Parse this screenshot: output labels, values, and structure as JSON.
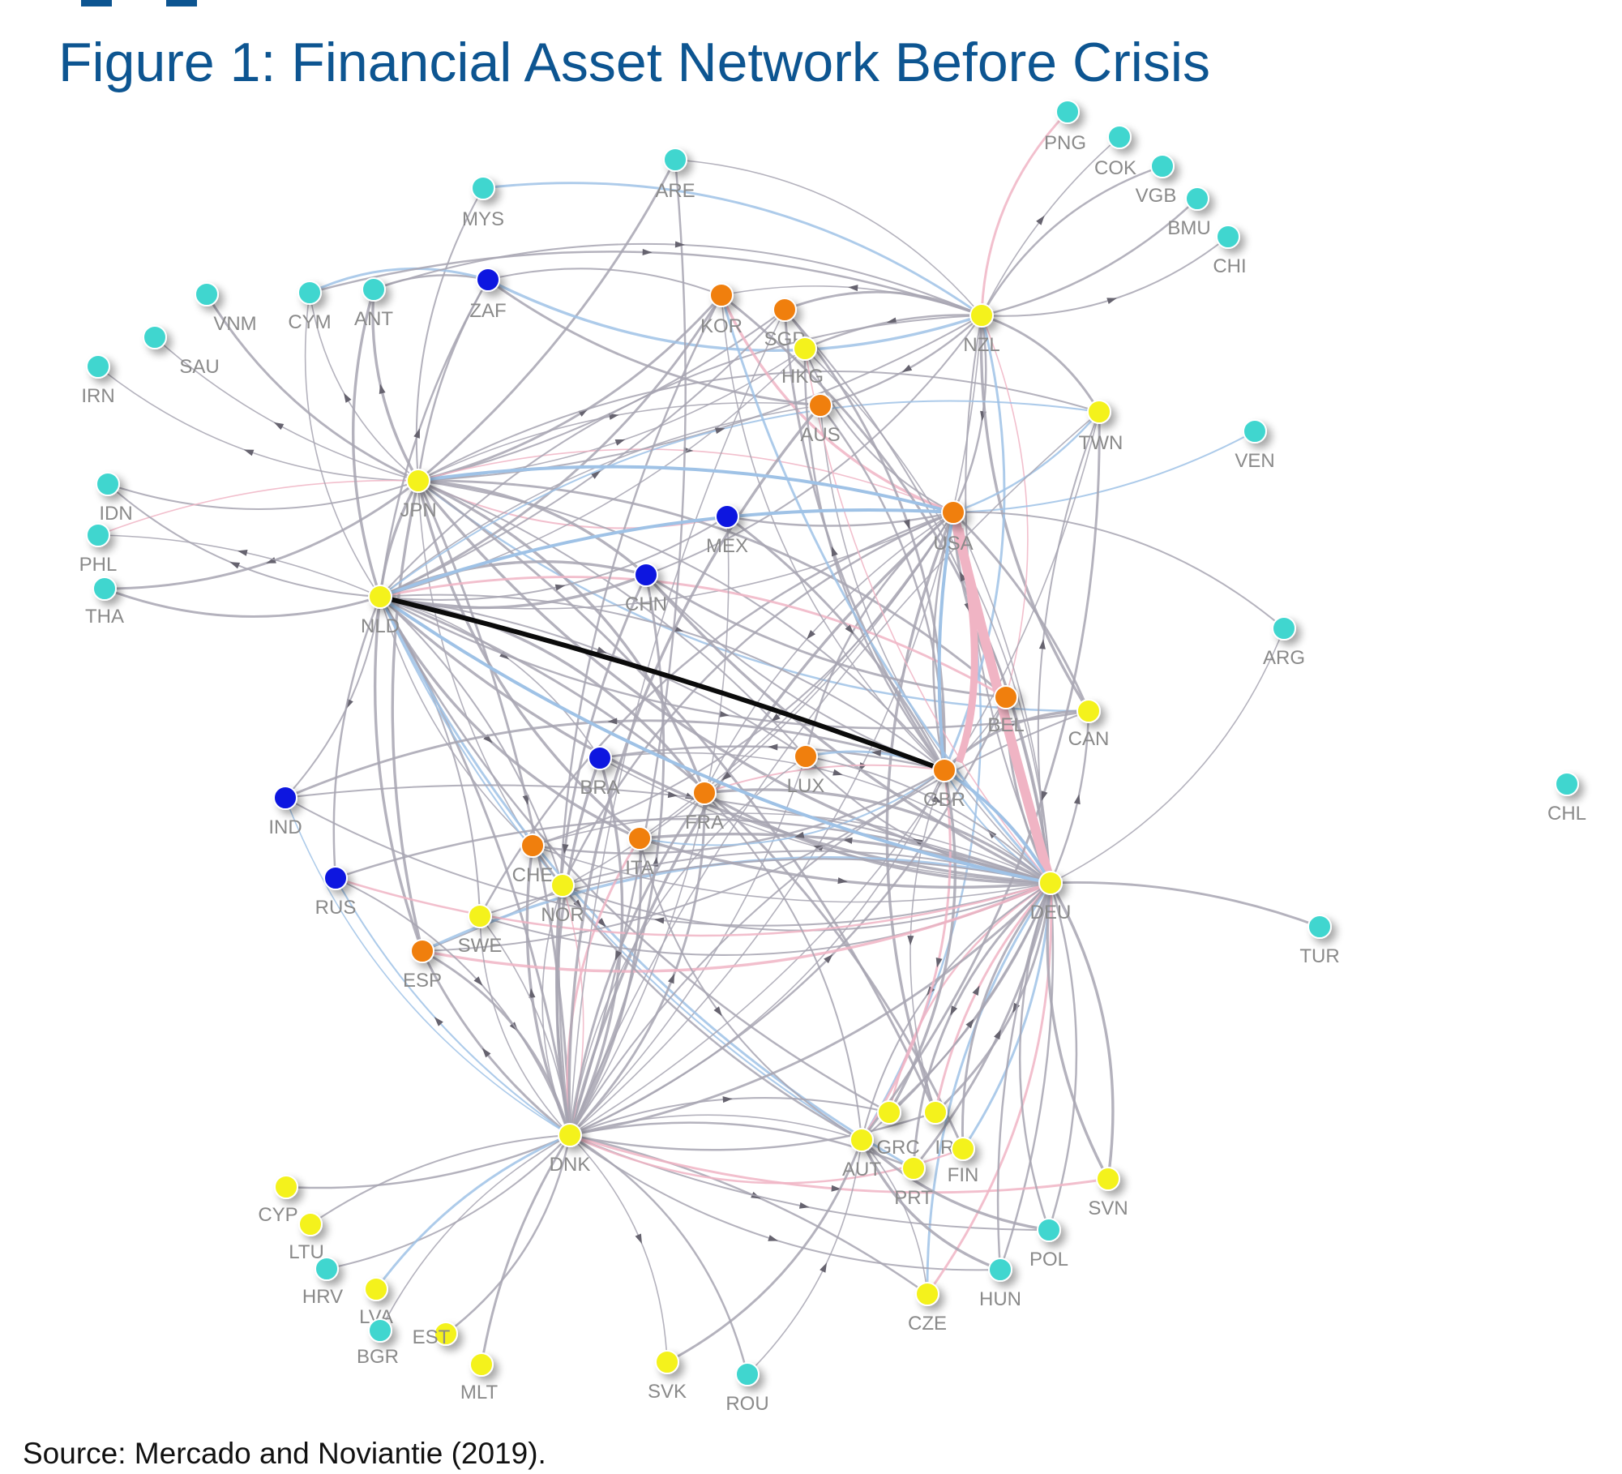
{
  "title": "Figure 1: Financial Asset Network Before Crisis",
  "source": "Source: Mercado and Noviantie (2019).",
  "colors": {
    "teal": "#3fd6cf",
    "yellow": "#f4f21a",
    "orange": "#f07f10",
    "blue": "#0a18e0",
    "edge": "#a7a4b2",
    "edge_blue": "#9fc2e6",
    "edge_pink": "#f0b4c4",
    "edge_strong": "#0b0b0b",
    "title": "#0d5591"
  },
  "nodes": [
    {
      "id": "PNG",
      "label": "PNG",
      "color": "teal"
    },
    {
      "id": "COK",
      "label": "COK",
      "color": "teal"
    },
    {
      "id": "VGB",
      "label": "VGB",
      "color": "teal"
    },
    {
      "id": "BMU",
      "label": "BMU",
      "color": "teal"
    },
    {
      "id": "CHI",
      "label": "CHI",
      "color": "teal"
    },
    {
      "id": "ARE",
      "label": "ARE",
      "color": "teal"
    },
    {
      "id": "MYS",
      "label": "MYS",
      "color": "teal"
    },
    {
      "id": "VNM",
      "label": "VNM",
      "color": "teal"
    },
    {
      "id": "CYM",
      "label": "CYM",
      "color": "teal"
    },
    {
      "id": "ANT",
      "label": "ANT",
      "color": "teal"
    },
    {
      "id": "ZAF",
      "label": "ZAF",
      "color": "blue"
    },
    {
      "id": "KOR",
      "label": "KOR",
      "color": "orange"
    },
    {
      "id": "SGP",
      "label": "SGP",
      "color": "orange"
    },
    {
      "id": "HKG",
      "label": "HKG",
      "color": "yellow"
    },
    {
      "id": "NZL",
      "label": "NZL",
      "color": "yellow"
    },
    {
      "id": "SAU",
      "label": "SAU",
      "color": "teal"
    },
    {
      "id": "IRN",
      "label": "IRN",
      "color": "teal"
    },
    {
      "id": "AUS",
      "label": "AUS",
      "color": "orange"
    },
    {
      "id": "TWN",
      "label": "TWN",
      "color": "yellow"
    },
    {
      "id": "VEN",
      "label": "VEN",
      "color": "teal"
    },
    {
      "id": "IDN",
      "label": "IDN",
      "color": "teal"
    },
    {
      "id": "JPN",
      "label": "JPN",
      "color": "yellow"
    },
    {
      "id": "MEX",
      "label": "MEX",
      "color": "blue"
    },
    {
      "id": "USA",
      "label": "USA",
      "color": "orange"
    },
    {
      "id": "PHL",
      "label": "PHL",
      "color": "teal"
    },
    {
      "id": "CHN",
      "label": "CHN",
      "color": "blue"
    },
    {
      "id": "THA",
      "label": "THA",
      "color": "teal"
    },
    {
      "id": "NLD",
      "label": "NLD",
      "color": "yellow"
    },
    {
      "id": "ARG",
      "label": "ARG",
      "color": "teal"
    },
    {
      "id": "BEL",
      "label": "BEL",
      "color": "orange"
    },
    {
      "id": "CAN",
      "label": "CAN",
      "color": "yellow"
    },
    {
      "id": "BRA",
      "label": "BRA",
      "color": "blue"
    },
    {
      "id": "LUX",
      "label": "LUX",
      "color": "orange"
    },
    {
      "id": "GBR",
      "label": "GBR",
      "color": "orange"
    },
    {
      "id": "CHL",
      "label": "CHL",
      "color": "teal"
    },
    {
      "id": "IND",
      "label": "IND",
      "color": "blue"
    },
    {
      "id": "FRA",
      "label": "FRA",
      "color": "orange"
    },
    {
      "id": "CHE",
      "label": "CHE",
      "color": "orange"
    },
    {
      "id": "ITA",
      "label": "ITA",
      "color": "orange"
    },
    {
      "id": "NOR",
      "label": "NOR",
      "color": "yellow"
    },
    {
      "id": "DEU",
      "label": "DEU",
      "color": "yellow"
    },
    {
      "id": "RUS",
      "label": "RUS",
      "color": "blue"
    },
    {
      "id": "SWE",
      "label": "SWE",
      "color": "yellow"
    },
    {
      "id": "ESP",
      "label": "ESP",
      "color": "orange"
    },
    {
      "id": "TUR",
      "label": "TUR",
      "color": "teal"
    },
    {
      "id": "GRC",
      "label": "GRC",
      "color": "yellow"
    },
    {
      "id": "IRL",
      "label": "IRL",
      "color": "yellow"
    },
    {
      "id": "AUT",
      "label": "AUT",
      "color": "yellow"
    },
    {
      "id": "FIN",
      "label": "FIN",
      "color": "yellow"
    },
    {
      "id": "PRT",
      "label": "PRT",
      "color": "yellow"
    },
    {
      "id": "DNK",
      "label": "DNK",
      "color": "yellow"
    },
    {
      "id": "CYP",
      "label": "CYP",
      "color": "yellow"
    },
    {
      "id": "LTU",
      "label": "LTU",
      "color": "yellow"
    },
    {
      "id": "SVN",
      "label": "SVN",
      "color": "yellow"
    },
    {
      "id": "POL",
      "label": "POL",
      "color": "teal"
    },
    {
      "id": "HRV",
      "label": "HRV",
      "color": "teal"
    },
    {
      "id": "LVA",
      "label": "LVA",
      "color": "yellow"
    },
    {
      "id": "HUN",
      "label": "HUN",
      "color": "teal"
    },
    {
      "id": "CZE",
      "label": "CZE",
      "color": "yellow"
    },
    {
      "id": "BGR",
      "label": "BGR",
      "color": "teal"
    },
    {
      "id": "EST",
      "label": "EST",
      "color": "yellow"
    },
    {
      "id": "MLT",
      "label": "MLT",
      "color": "yellow"
    },
    {
      "id": "SVK",
      "label": "SVK",
      "color": "yellow"
    },
    {
      "id": "ROU",
      "label": "ROU",
      "color": "teal"
    }
  ],
  "edges": [
    [
      "JPN",
      "ARE"
    ],
    [
      "JPN",
      "MYS"
    ],
    [
      "JPN",
      "VNM"
    ],
    [
      "JPN",
      "CYM"
    ],
    [
      "JPN",
      "ANT"
    ],
    [
      "JPN",
      "ZAF"
    ],
    [
      "JPN",
      "KOR"
    ],
    [
      "JPN",
      "SGP"
    ],
    [
      "JPN",
      "HKG"
    ],
    [
      "JPN",
      "NZL"
    ],
    [
      "JPN",
      "SAU"
    ],
    [
      "JPN",
      "IRN"
    ],
    [
      "JPN",
      "AUS"
    ],
    [
      "JPN",
      "TWN"
    ],
    [
      "JPN",
      "IDN"
    ],
    [
      "JPN",
      "PHL"
    ],
    [
      "JPN",
      "THA"
    ],
    [
      "JPN",
      "MEX"
    ],
    [
      "JPN",
      "USA"
    ],
    [
      "JPN",
      "CHN"
    ],
    [
      "JPN",
      "NLD"
    ],
    [
      "JPN",
      "BEL"
    ],
    [
      "JPN",
      "CAN"
    ],
    [
      "JPN",
      "LUX"
    ],
    [
      "JPN",
      "GBR"
    ],
    [
      "JPN",
      "FRA"
    ],
    [
      "JPN",
      "ITA"
    ],
    [
      "JPN",
      "DEU"
    ],
    [
      "JPN",
      "DNK"
    ],
    [
      "JPN",
      "IRL"
    ],
    [
      "JPN",
      "ESP"
    ],
    [
      "JPN",
      "CHE"
    ],
    [
      "NZL",
      "PNG"
    ],
    [
      "NZL",
      "COK"
    ],
    [
      "NZL",
      "VGB"
    ],
    [
      "NZL",
      "BMU"
    ],
    [
      "NZL",
      "CHI"
    ],
    [
      "NZL",
      "ARE"
    ],
    [
      "NZL",
      "ZAF"
    ],
    [
      "NZL",
      "KOR"
    ],
    [
      "NZL",
      "SGP"
    ],
    [
      "NZL",
      "HKG"
    ],
    [
      "NZL",
      "TWN"
    ],
    [
      "NZL",
      "USA"
    ],
    [
      "NZL",
      "CAN"
    ],
    [
      "NZL",
      "DEU"
    ],
    [
      "NZL",
      "GBR"
    ],
    [
      "NZL",
      "NLD"
    ],
    [
      "NZL",
      "AUS"
    ],
    [
      "NZL",
      "BEL"
    ],
    [
      "NZL",
      "DNK"
    ],
    [
      "NZL",
      "CHN"
    ],
    [
      "USA",
      "VEN"
    ],
    [
      "USA",
      "ARG"
    ],
    [
      "USA",
      "MEX"
    ],
    [
      "USA",
      "BEL"
    ],
    [
      "USA",
      "CAN"
    ],
    [
      "USA",
      "GBR"
    ],
    [
      "USA",
      "DEU"
    ],
    [
      "USA",
      "NLD"
    ],
    [
      "USA",
      "LUX"
    ],
    [
      "USA",
      "FRA"
    ],
    [
      "USA",
      "DNK"
    ],
    [
      "USA",
      "CHE"
    ],
    [
      "USA",
      "IRL"
    ],
    [
      "USA",
      "ITA"
    ],
    [
      "USA",
      "ESP"
    ],
    [
      "USA",
      "NOR"
    ],
    [
      "USA",
      "SWE"
    ],
    [
      "USA",
      "AUT"
    ],
    [
      "USA",
      "HKG"
    ],
    [
      "USA",
      "KOR"
    ],
    [
      "USA",
      "TWN"
    ],
    [
      "NLD",
      "IDN"
    ],
    [
      "NLD",
      "PHL"
    ],
    [
      "NLD",
      "THA"
    ],
    [
      "NLD",
      "CYM"
    ],
    [
      "NLD",
      "ANT"
    ],
    [
      "NLD",
      "ZAF"
    ],
    [
      "NLD",
      "IND"
    ],
    [
      "NLD",
      "RUS"
    ],
    [
      "NLD",
      "ESP"
    ],
    [
      "NLD",
      "SWE"
    ],
    [
      "NLD",
      "CHE"
    ],
    [
      "NLD",
      "NOR"
    ],
    [
      "NLD",
      "ITA"
    ],
    [
      "NLD",
      "FRA"
    ],
    [
      "NLD",
      "BRA"
    ],
    [
      "NLD",
      "LUX"
    ],
    [
      "NLD",
      "GBR"
    ],
    [
      "NLD",
      "DEU"
    ],
    [
      "NLD",
      "DNK"
    ],
    [
      "NLD",
      "GRC"
    ],
    [
      "NLD",
      "AUT"
    ],
    [
      "NLD",
      "BEL"
    ],
    [
      "NLD",
      "CAN"
    ],
    [
      "NLD",
      "MEX"
    ],
    [
      "NLD",
      "CHN"
    ],
    [
      "NLD",
      "SGP"
    ],
    [
      "NLD",
      "KOR"
    ],
    [
      "NLD",
      "HKG"
    ],
    [
      "NLD",
      "AUS"
    ],
    [
      "NLD",
      "TWN"
    ],
    [
      "NLD",
      "FIN"
    ],
    [
      "NLD",
      "PRT"
    ],
    [
      "DEU",
      "TUR"
    ],
    [
      "DEU",
      "ARG"
    ],
    [
      "DEU",
      "CAN"
    ],
    [
      "DEU",
      "BEL"
    ],
    [
      "DEU",
      "GBR"
    ],
    [
      "DEU",
      "LUX"
    ],
    [
      "DEU",
      "FRA"
    ],
    [
      "DEU",
      "ITA"
    ],
    [
      "DEU",
      "CHE"
    ],
    [
      "DEU",
      "NOR"
    ],
    [
      "DEU",
      "SWE"
    ],
    [
      "DEU",
      "ESP"
    ],
    [
      "DEU",
      "RUS"
    ],
    [
      "DEU",
      "GRC"
    ],
    [
      "DEU",
      "IRL"
    ],
    [
      "DEU",
      "AUT"
    ],
    [
      "DEU",
      "FIN"
    ],
    [
      "DEU",
      "PRT"
    ],
    [
      "DEU",
      "SVN"
    ],
    [
      "DEU",
      "POL"
    ],
    [
      "DEU",
      "HUN"
    ],
    [
      "DEU",
      "CZE"
    ],
    [
      "DEU",
      "DNK"
    ],
    [
      "DEU",
      "TWN"
    ],
    [
      "DEU",
      "AUS"
    ],
    [
      "DEU",
      "KOR"
    ],
    [
      "DEU",
      "HKG"
    ],
    [
      "DEU",
      "SGP"
    ],
    [
      "DEU",
      "CHN"
    ],
    [
      "DEU",
      "BRA"
    ],
    [
      "DEU",
      "IND"
    ],
    [
      "DNK",
      "CYP"
    ],
    [
      "DNK",
      "LTU"
    ],
    [
      "DNK",
      "HRV"
    ],
    [
      "DNK",
      "LVA"
    ],
    [
      "DNK",
      "BGR"
    ],
    [
      "DNK",
      "EST"
    ],
    [
      "DNK",
      "MLT"
    ],
    [
      "DNK",
      "SVK"
    ],
    [
      "DNK",
      "ROU"
    ],
    [
      "DNK",
      "CZE"
    ],
    [
      "DNK",
      "HUN"
    ],
    [
      "DNK",
      "POL"
    ],
    [
      "DNK",
      "SVN"
    ],
    [
      "DNK",
      "AUT"
    ],
    [
      "DNK",
      "GRC"
    ],
    [
      "DNK",
      "IRL"
    ],
    [
      "DNK",
      "FIN"
    ],
    [
      "DNK",
      "PRT"
    ],
    [
      "DNK",
      "GBR"
    ],
    [
      "DNK",
      "FRA"
    ],
    [
      "DNK",
      "ITA"
    ],
    [
      "DNK",
      "CHE"
    ],
    [
      "DNK",
      "ESP"
    ],
    [
      "DNK",
      "SWE"
    ],
    [
      "DNK",
      "NOR"
    ],
    [
      "DNK",
      "RUS"
    ],
    [
      "DNK",
      "BRA"
    ],
    [
      "DNK",
      "CHN"
    ],
    [
      "DNK",
      "LUX"
    ],
    [
      "DNK",
      "BEL"
    ],
    [
      "DNK",
      "CAN"
    ],
    [
      "DNK",
      "TWN"
    ],
    [
      "DNK",
      "KOR"
    ],
    [
      "DNK",
      "SGP"
    ],
    [
      "GBR",
      "IND"
    ],
    [
      "GBR",
      "BRA"
    ],
    [
      "GBR",
      "FRA"
    ],
    [
      "GBR",
      "LUX"
    ],
    [
      "GBR",
      "CHE"
    ],
    [
      "GBR",
      "ITA"
    ],
    [
      "GBR",
      "ESP"
    ],
    [
      "GBR",
      "BEL"
    ],
    [
      "GBR",
      "CAN"
    ],
    [
      "GBR",
      "AUS"
    ],
    [
      "GBR",
      "HKG"
    ],
    [
      "GBR",
      "SGP"
    ],
    [
      "GBR",
      "KOR"
    ],
    [
      "GBR",
      "AUT"
    ],
    [
      "GBR",
      "IRL"
    ],
    [
      "GBR",
      "GRC"
    ],
    [
      "ZAF",
      "ANT"
    ],
    [
      "ZAF",
      "CYM"
    ],
    [
      "ZAF",
      "KOR"
    ],
    [
      "ZAF",
      "AUS"
    ],
    [
      "ARE",
      "DNK"
    ],
    [
      "MYS",
      "NZL"
    ],
    [
      "CYM",
      "NZL"
    ],
    [
      "ANT",
      "NZL"
    ],
    [
      "SGP",
      "GBR"
    ],
    [
      "KOR",
      "DEU"
    ],
    [
      "AUS",
      "DNK"
    ],
    [
      "HKG",
      "DEU"
    ],
    [
      "TWN",
      "DNK"
    ],
    [
      "TWN",
      "AUT"
    ],
    [
      "CHN",
      "BEL"
    ],
    [
      "CHN",
      "GBR"
    ],
    [
      "CHN",
      "NLD"
    ],
    [
      "MEX",
      "GBR"
    ],
    [
      "BRA",
      "DEU"
    ],
    [
      "IND",
      "DEU"
    ],
    [
      "RUS",
      "DEU"
    ],
    [
      "ESP",
      "DEU"
    ],
    [
      "SWE",
      "DEU"
    ],
    [
      "NOR",
      "DEU"
    ],
    [
      "CHE",
      "DEU"
    ],
    [
      "ITA",
      "DEU"
    ],
    [
      "FRA",
      "DEU"
    ],
    [
      "LUX",
      "DEU"
    ],
    [
      "ITA",
      "AUT"
    ],
    [
      "FRA",
      "AUT"
    ],
    [
      "CHE",
      "AUT"
    ],
    [
      "NOR",
      "DNK"
    ],
    [
      "SWE",
      "DNK"
    ],
    [
      "ESP",
      "DNK"
    ],
    [
      "RUS",
      "DNK"
    ],
    [
      "IND",
      "DNK"
    ],
    [
      "CHN",
      "DNK"
    ],
    [
      "MEX",
      "DNK"
    ],
    [
      "BRA",
      "DNK"
    ],
    [
      "ITA",
      "DNK"
    ],
    [
      "FRA",
      "DNK"
    ],
    [
      "LUX",
      "DNK"
    ],
    [
      "GRC",
      "DEU"
    ],
    [
      "IRL",
      "DEU"
    ],
    [
      "AUT",
      "DEU"
    ],
    [
      "FIN",
      "DEU"
    ],
    [
      "PRT",
      "DEU"
    ],
    [
      "CZE",
      "DEU"
    ],
    [
      "HUN",
      "DEU"
    ],
    [
      "POL",
      "DEU"
    ],
    [
      "SVN",
      "DEU"
    ],
    [
      "ROU",
      "AUT"
    ],
    [
      "SVK",
      "AUT"
    ],
    [
      "CZE",
      "AUT"
    ],
    [
      "HUN",
      "AUT"
    ],
    [
      "POL",
      "AUT"
    ]
  ],
  "highlight_edges": [
    {
      "from": "NLD",
      "to": "GBR",
      "style": "strong"
    },
    {
      "from": "USA",
      "to": "DEU",
      "style": "pink"
    },
    {
      "from": "USA",
      "to": "GBR",
      "style": "blue"
    },
    {
      "from": "NLD",
      "to": "USA",
      "style": "blue"
    },
    {
      "from": "NLD",
      "to": "DEU",
      "style": "blue"
    },
    {
      "from": "JPN",
      "to": "USA",
      "style": "blue"
    },
    {
      "from": "GBR",
      "to": "DEU",
      "style": "blue"
    }
  ]
}
